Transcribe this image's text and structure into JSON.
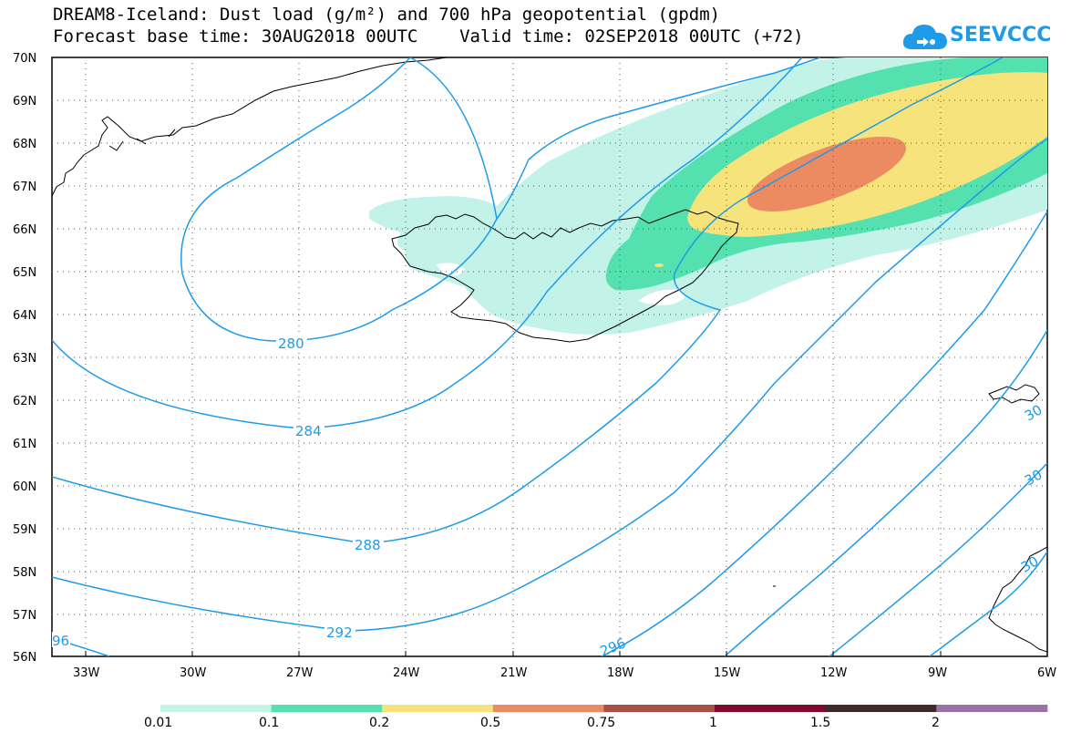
{
  "title": {
    "line1": "DREAM8-Iceland: Dust load (g/m²) and 700 hPa geopotential (gpdm)",
    "line2": "Forecast base time: 30AUG2018 00UTC    Valid time: 02SEP2018 00UTC (+72)"
  },
  "logo": {
    "text": "SEEVCCC",
    "icon": "cloud-icon",
    "color": "#1e9be8"
  },
  "map": {
    "lat_labels": [
      "70N",
      "69N",
      "68N",
      "67N",
      "66N",
      "65N",
      "64N",
      "63N",
      "62N",
      "61N",
      "60N",
      "59N",
      "58N",
      "57N",
      "56N"
    ],
    "lon_labels": [
      "33W",
      "30W",
      "27W",
      "24W",
      "21W",
      "18W",
      "15W",
      "12W",
      "9W",
      "6W"
    ],
    "contour_labels": [
      "280",
      "284",
      "288",
      "292",
      "96",
      "296",
      "30",
      "30",
      "30"
    ],
    "contour_color": "#1e9be8",
    "coast_color": "#000000"
  },
  "legend": {
    "colors": [
      "#c2f2e8",
      "#55e0b0",
      "#f7e37c",
      "#ec8a62",
      "#a84f47",
      "#800a2d",
      "#3b2a28",
      "#9a72a6"
    ],
    "labels": [
      "0.01",
      "0.1",
      "0.2",
      "0.5",
      "0.75",
      "1",
      "1.5",
      "2"
    ]
  }
}
